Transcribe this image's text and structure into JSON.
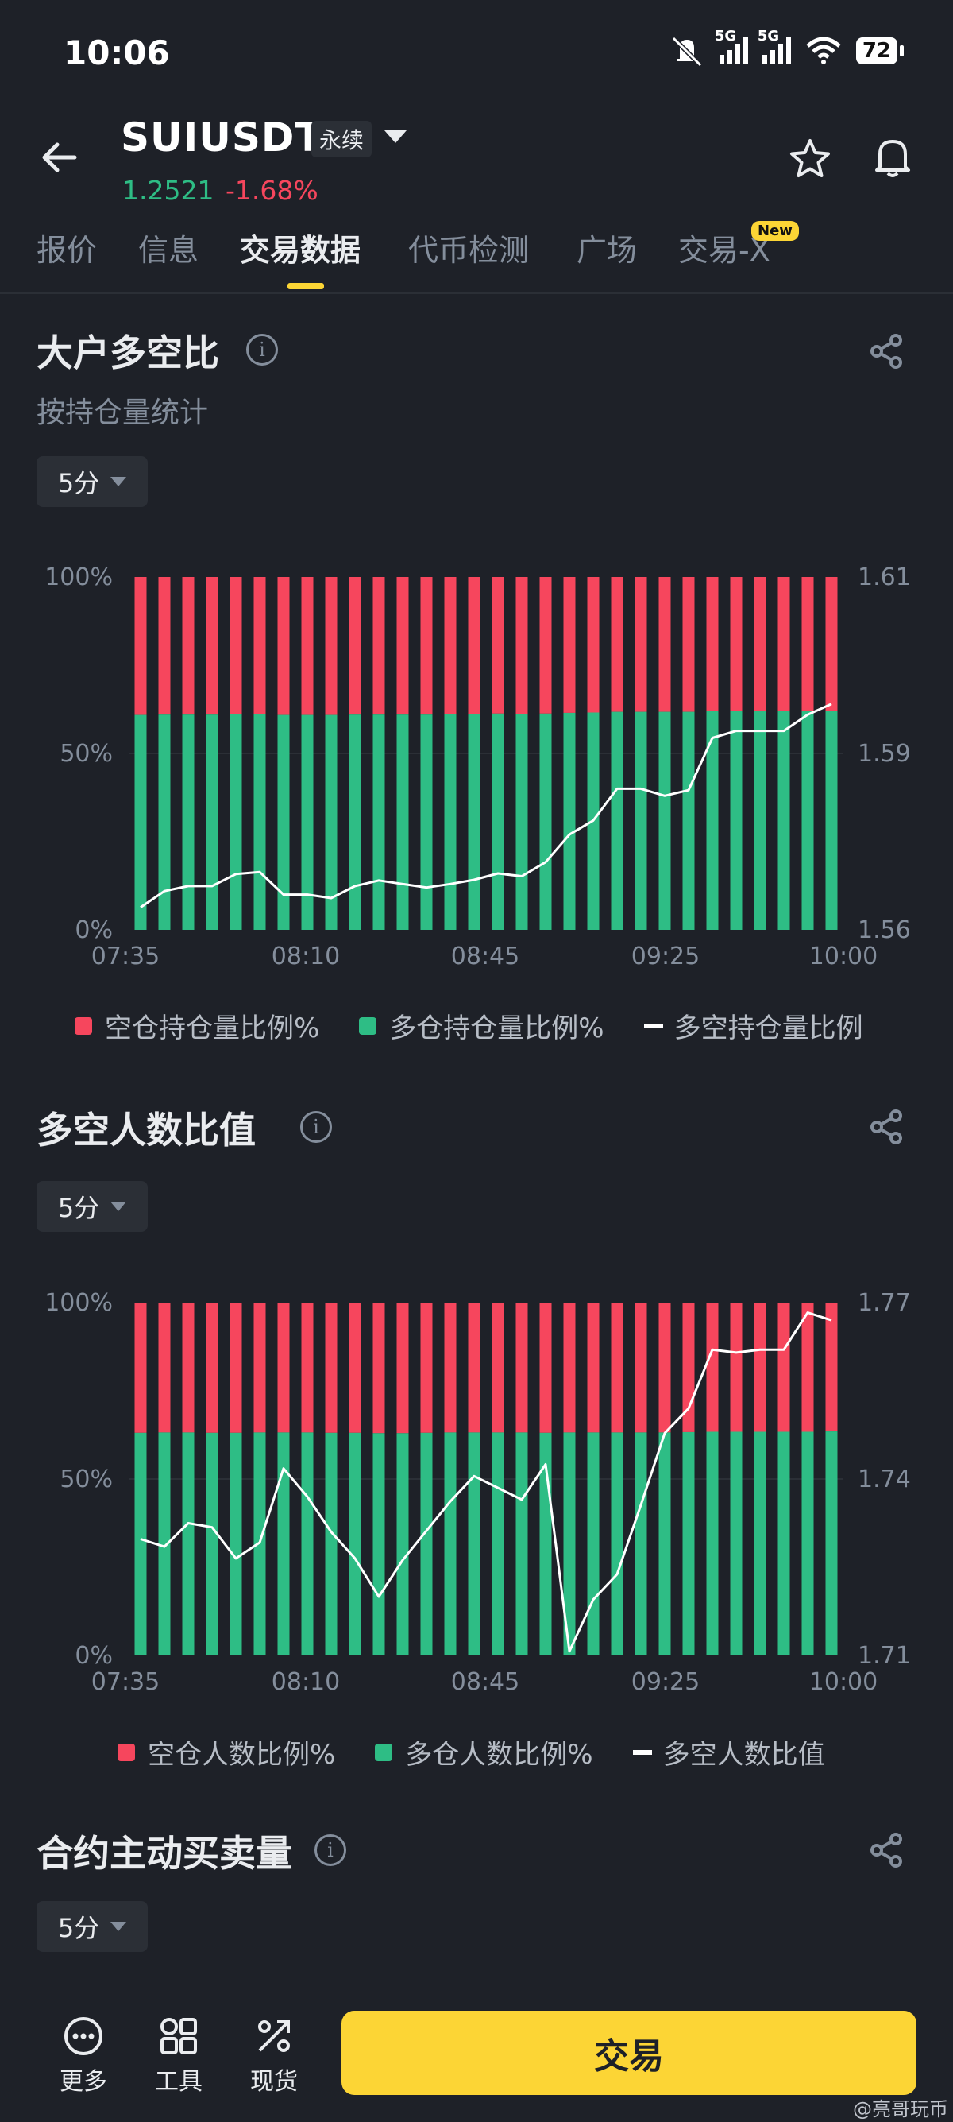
{
  "status_bar": {
    "time": "10:06",
    "net1": "5G",
    "net2": "5G",
    "battery": "72"
  },
  "header": {
    "symbol": "SUIUSDT",
    "contract_type": "永续",
    "price": "1.2521",
    "change": "-1.68%"
  },
  "tabs": [
    {
      "label": "报价"
    },
    {
      "label": "信息"
    },
    {
      "label": "交易数据",
      "active": true
    },
    {
      "label": "代币检测"
    },
    {
      "label": "广场"
    },
    {
      "label": "交易-X"
    }
  ],
  "new_badge": "New",
  "colors": {
    "short": "#f6465d",
    "long": "#2ebd85",
    "ratio_line": "#ffffff",
    "accent": "#fcd535"
  },
  "section1": {
    "title": "大户多空比",
    "subtitle": "按持仓量统计",
    "interval": "5分",
    "legend": {
      "short": "空仓持仓量比例%",
      "long": "多仓持仓量比例%",
      "ratio": "多空持仓量比例"
    }
  },
  "section2": {
    "title": "多空人数比值",
    "interval": "5分",
    "legend": {
      "short": "空仓人数比例%",
      "long": "多仓人数比例%",
      "ratio": "多空人数比值"
    }
  },
  "section3": {
    "title": "合约主动买卖量",
    "interval": "5分"
  },
  "chart_data": [
    {
      "type": "bar",
      "x_ticks": [
        "07:35",
        "08:10",
        "08:45",
        "09:25",
        "10:00"
      ],
      "y_left_ticks": [
        "100%",
        "50%",
        "0%"
      ],
      "y_right_ticks": [
        "1.61",
        "1.59",
        "1.56"
      ],
      "y_left_range": [
        0,
        100
      ],
      "y_right_range": [
        1.56,
        1.61
      ],
      "long_pct": [
        60.9,
        61.0,
        61.0,
        61.0,
        61.2,
        61.2,
        60.9,
        60.9,
        60.9,
        61.0,
        61.0,
        61.0,
        61.0,
        61.1,
        61.1,
        61.3,
        61.2,
        61.3,
        61.5,
        61.6,
        61.8,
        61.8,
        61.8,
        61.8,
        62.0,
        62.0,
        62.0,
        62.0,
        62.0,
        62.1
      ],
      "ratio_line": [
        1.5632,
        1.5655,
        1.5662,
        1.5662,
        1.5679,
        1.5682,
        1.565,
        1.565,
        1.5645,
        1.5662,
        1.567,
        1.5665,
        1.566,
        1.5665,
        1.5671,
        1.568,
        1.5676,
        1.5696,
        1.5735,
        1.5755,
        1.58,
        1.58,
        1.579,
        1.5798,
        1.5872,
        1.5882,
        1.5882,
        1.5882,
        1.5905,
        1.592
      ]
    },
    {
      "type": "bar",
      "x_ticks": [
        "07:35",
        "08:10",
        "08:45",
        "09:25",
        "10:00"
      ],
      "y_left_ticks": [
        "100%",
        "50%",
        "0%"
      ],
      "y_right_ticks": [
        "1.77",
        "1.74",
        "1.71"
      ],
      "y_left_range": [
        0,
        100
      ],
      "y_right_range": [
        1.71,
        1.77
      ],
      "long_pct": [
        63.1,
        63.2,
        63.2,
        63.1,
        63.1,
        63.2,
        63.2,
        63.2,
        63.1,
        63.1,
        63.0,
        63.0,
        63.1,
        63.2,
        63.2,
        63.2,
        63.2,
        63.1,
        63.2,
        63.2,
        63.2,
        63.2,
        63.2,
        63.3,
        63.4,
        63.4,
        63.4,
        63.4,
        63.4,
        63.5
      ],
      "ratio_line": [
        1.7298,
        1.7285,
        1.7325,
        1.7318,
        1.7265,
        1.7292,
        1.7418,
        1.737,
        1.731,
        1.7265,
        1.72,
        1.7262,
        1.7312,
        1.7362,
        1.7405,
        1.7385,
        1.7365,
        1.7425,
        1.7107,
        1.7195,
        1.7238,
        1.7356,
        1.7478,
        1.752,
        1.762,
        1.7615,
        1.762,
        1.762,
        1.7683,
        1.767
      ]
    }
  ],
  "bottom_nav": {
    "more": "更多",
    "tools": "工具",
    "spot": "现货",
    "trade": "交易"
  },
  "watermark": "@亮哥玩币"
}
